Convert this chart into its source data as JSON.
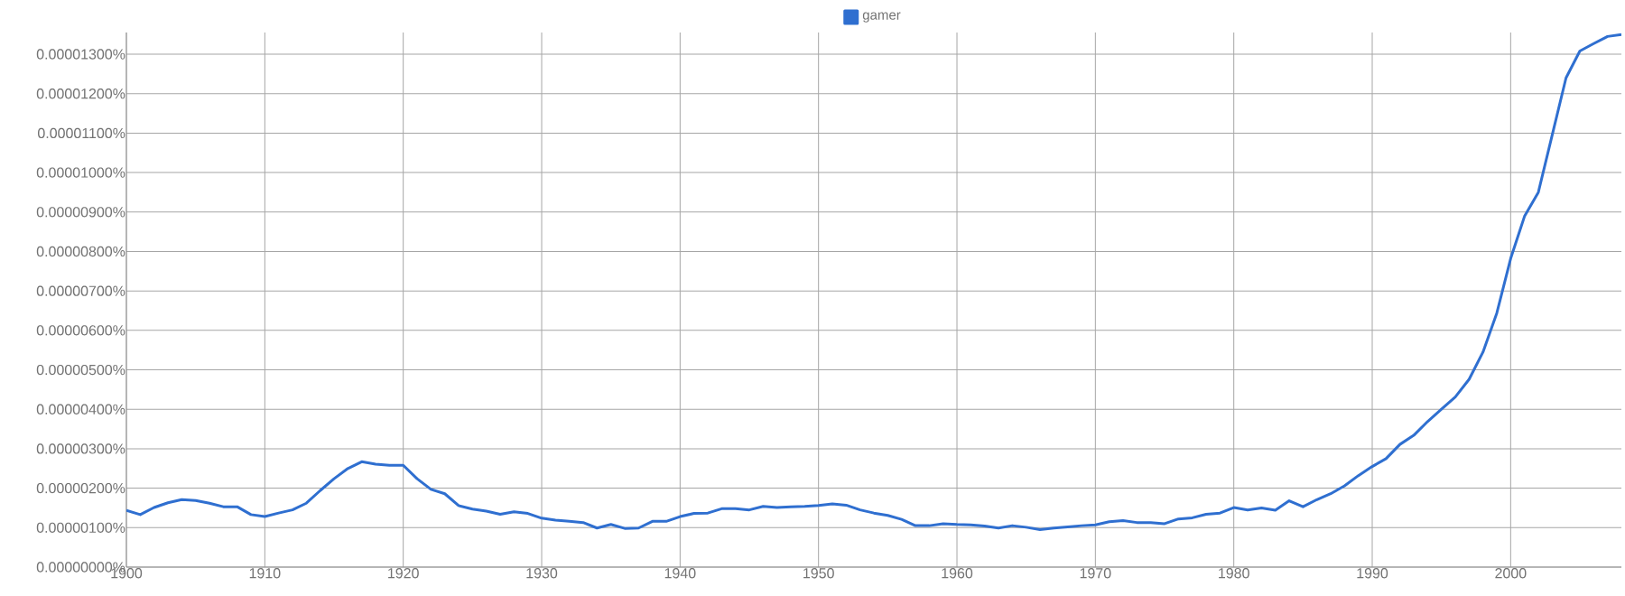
{
  "chart_data": {
    "type": "line",
    "x": [
      1900,
      1901,
      1902,
      1903,
      1904,
      1905,
      1906,
      1907,
      1908,
      1909,
      1910,
      1911,
      1912,
      1913,
      1914,
      1915,
      1916,
      1917,
      1918,
      1919,
      1920,
      1921,
      1922,
      1923,
      1924,
      1925,
      1926,
      1927,
      1928,
      1929,
      1930,
      1931,
      1932,
      1933,
      1934,
      1935,
      1936,
      1937,
      1938,
      1939,
      1940,
      1941,
      1942,
      1943,
      1944,
      1945,
      1946,
      1947,
      1948,
      1949,
      1950,
      1951,
      1952,
      1953,
      1954,
      1955,
      1956,
      1957,
      1958,
      1959,
      1960,
      1961,
      1962,
      1963,
      1964,
      1965,
      1966,
      1967,
      1968,
      1969,
      1970,
      1971,
      1972,
      1973,
      1974,
      1975,
      1976,
      1977,
      1978,
      1979,
      1980,
      1981,
      1982,
      1983,
      1984,
      1985,
      1986,
      1987,
      1988,
      1989,
      1990,
      1991,
      1992,
      1993,
      1994,
      1995,
      1996,
      1997,
      1998,
      1999,
      2000,
      2001,
      2002,
      2003,
      2004,
      2005,
      2006,
      2007,
      2008
    ],
    "series": [
      {
        "name": "gamer",
        "color": "#2f6fd0",
        "values": [
          1.44e-06,
          1.33e-06,
          1.51e-06,
          1.63e-06,
          1.71e-06,
          1.69e-06,
          1.62e-06,
          1.53e-06,
          1.53e-06,
          1.33e-06,
          1.28e-06,
          1.37e-06,
          1.45e-06,
          1.62e-06,
          1.94e-06,
          2.24e-06,
          2.5e-06,
          2.67e-06,
          2.61e-06,
          2.58e-06,
          2.58e-06,
          2.24e-06,
          1.97e-06,
          1.86e-06,
          1.56e-06,
          1.47e-06,
          1.42e-06,
          1.34e-06,
          1.4e-06,
          1.36e-06,
          1.24e-06,
          1.19e-06,
          1.16e-06,
          1.13e-06,
          9.9e-07,
          1.08e-06,
          9.8e-07,
          9.9e-07,
          1.16e-06,
          1.16e-06,
          1.28e-06,
          1.36e-06,
          1.37e-06,
          1.48e-06,
          1.48e-06,
          1.45e-06,
          1.54e-06,
          1.51e-06,
          1.53e-06,
          1.54e-06,
          1.56e-06,
          1.6e-06,
          1.57e-06,
          1.45e-06,
          1.37e-06,
          1.31e-06,
          1.21e-06,
          1.05e-06,
          1.05e-06,
          1.1e-06,
          1.08e-06,
          1.07e-06,
          1.04e-06,
          9.9e-07,
          1.05e-06,
          1.01e-06,
          9.5e-07,
          9.9e-07,
          1.02e-06,
          1.05e-06,
          1.07e-06,
          1.15e-06,
          1.18e-06,
          1.13e-06,
          1.13e-06,
          1.1e-06,
          1.22e-06,
          1.25e-06,
          1.34e-06,
          1.37e-06,
          1.51e-06,
          1.45e-06,
          1.5e-06,
          1.44e-06,
          1.68e-06,
          1.53e-06,
          1.71e-06,
          1.86e-06,
          2.06e-06,
          2.32e-06,
          2.55e-06,
          2.75e-06,
          3.11e-06,
          3.34e-06,
          3.69e-06,
          4e-06,
          4.31e-06,
          4.76e-06,
          5.45e-06,
          6.44e-06,
          7.82e-06,
          8.89e-06,
          9.5e-06,
          1.095e-05,
          1.24e-05,
          1.308e-05,
          1.327e-05,
          1.345e-05,
          1.35e-05
        ]
      }
    ],
    "xlim": [
      1900,
      2008
    ],
    "ylim": [
      0,
      1.355e-05
    ],
    "xticks": [
      1900,
      1910,
      1920,
      1930,
      1940,
      1950,
      1960,
      1970,
      1980,
      1990,
      2000
    ],
    "yticks": [
      {
        "value": 0,
        "label": "0.00000000%"
      },
      {
        "value": 1e-06,
        "label": "0.00000100%"
      },
      {
        "value": 2e-06,
        "label": "0.00000200%"
      },
      {
        "value": 3e-06,
        "label": "0.00000300%"
      },
      {
        "value": 4e-06,
        "label": "0.00000400%"
      },
      {
        "value": 5e-06,
        "label": "0.00000500%"
      },
      {
        "value": 6e-06,
        "label": "0.00000600%"
      },
      {
        "value": 7e-06,
        "label": "0.00000700%"
      },
      {
        "value": 8e-06,
        "label": "0.00000800%"
      },
      {
        "value": 9e-06,
        "label": "0.00000900%"
      },
      {
        "value": 1e-05,
        "label": "0.00001000%"
      },
      {
        "value": 1.1e-05,
        "label": "0.00001100%"
      },
      {
        "value": 1.2e-05,
        "label": "0.00001200%"
      },
      {
        "value": 1.3e-05,
        "label": "0.00001300%"
      }
    ],
    "grid": true,
    "legend": "top",
    "marker": "none",
    "line_style": "solid"
  }
}
